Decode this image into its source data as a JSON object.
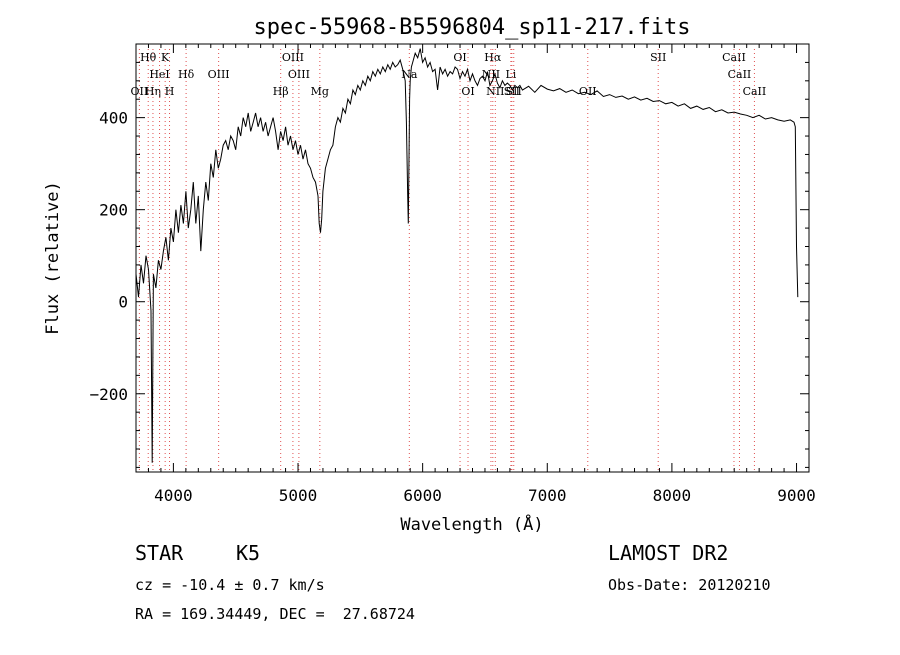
{
  "chart_data": {
    "type": "line",
    "title": "spec-55968-B5596804_sp11-217.fits",
    "xlabel": "Wavelength (Å)",
    "ylabel": "Flux (relative)",
    "xlim": [
      3700,
      9100
    ],
    "ylim": [
      -370,
      560
    ],
    "xticks": [
      4000,
      5000,
      6000,
      7000,
      8000,
      9000
    ],
    "yticks": [
      -200,
      0,
      200,
      400
    ],
    "grid": false,
    "series": [
      {
        "x": [
          3700,
          3720,
          3740,
          3760,
          3780,
          3800,
          3820,
          3830,
          3840,
          3860,
          3880,
          3900,
          3920,
          3940,
          3960,
          3980,
          4000,
          4020,
          4040,
          4060,
          4080,
          4100,
          4120,
          4140,
          4160,
          4180,
          4200,
          4220,
          4240,
          4260,
          4280,
          4300,
          4320,
          4340,
          4360,
          4380,
          4400,
          4420,
          4440,
          4460,
          4480,
          4500,
          4520,
          4540,
          4560,
          4580,
          4600,
          4620,
          4640,
          4660,
          4680,
          4700,
          4720,
          4740,
          4760,
          4780,
          4800,
          4820,
          4840,
          4860,
          4880,
          4900,
          4920,
          4940,
          4960,
          4980,
          5000,
          5020,
          5040,
          5060,
          5080,
          5100,
          5120,
          5140,
          5160,
          5170,
          5180,
          5190,
          5200,
          5220,
          5240,
          5260,
          5280,
          5300,
          5320,
          5340,
          5360,
          5380,
          5400,
          5420,
          5440,
          5460,
          5480,
          5500,
          5520,
          5540,
          5560,
          5580,
          5600,
          5620,
          5640,
          5660,
          5680,
          5700,
          5720,
          5740,
          5760,
          5780,
          5800,
          5820,
          5840,
          5860,
          5870,
          5880,
          5885,
          5890,
          5895,
          5900,
          5910,
          5920,
          5940,
          5960,
          5980,
          6000,
          6020,
          6040,
          6060,
          6080,
          6100,
          6120,
          6140,
          6160,
          6180,
          6200,
          6220,
          6240,
          6260,
          6280,
          6300,
          6320,
          6340,
          6360,
          6380,
          6400,
          6420,
          6440,
          6460,
          6480,
          6500,
          6520,
          6540,
          6560,
          6580,
          6600,
          6620,
          6640,
          6660,
          6680,
          6700,
          6720,
          6740,
          6760,
          6780,
          6800,
          6850,
          6900,
          6950,
          7000,
          7050,
          7100,
          7150,
          7200,
          7250,
          7300,
          7350,
          7400,
          7450,
          7500,
          7550,
          7600,
          7650,
          7700,
          7750,
          7800,
          7850,
          7900,
          7950,
          8000,
          8050,
          8100,
          8150,
          8200,
          8250,
          8300,
          8350,
          8400,
          8450,
          8500,
          8550,
          8600,
          8650,
          8700,
          8750,
          8800,
          8850,
          8900,
          8950,
          8980,
          8990,
          9000,
          9010
        ],
        "values": [
          60,
          10,
          80,
          40,
          100,
          70,
          -20,
          -350,
          60,
          30,
          90,
          70,
          110,
          140,
          90,
          160,
          130,
          200,
          150,
          210,
          170,
          240,
          160,
          200,
          260,
          170,
          230,
          110,
          200,
          260,
          220,
          300,
          270,
          330,
          290,
          310,
          340,
          350,
          330,
          360,
          350,
          330,
          380,
          360,
          400,
          380,
          410,
          370,
          390,
          410,
          380,
          400,
          370,
          390,
          360,
          380,
          400,
          370,
          330,
          370,
          350,
          380,
          340,
          360,
          330,
          350,
          320,
          340,
          310,
          330,
          300,
          290,
          270,
          260,
          230,
          170,
          150,
          180,
          240,
          290,
          310,
          330,
          340,
          380,
          400,
          390,
          420,
          410,
          440,
          430,
          460,
          450,
          470,
          460,
          480,
          470,
          490,
          480,
          500,
          490,
          505,
          495,
          510,
          500,
          515,
          505,
          520,
          510,
          515,
          525,
          505,
          480,
          390,
          230,
          170,
          290,
          440,
          480,
          510,
          520,
          540,
          530,
          550,
          520,
          530,
          510,
          520,
          500,
          505,
          460,
          510,
          495,
          505,
          490,
          500,
          495,
          510,
          505,
          485,
          500,
          490,
          505,
          480,
          495,
          480,
          470,
          485,
          490,
          480,
          500,
          470,
          480,
          495,
          475,
          465,
          480,
          470,
          475,
          470,
          460,
          470,
          465,
          470,
          460,
          468,
          455,
          470,
          462,
          458,
          463,
          455,
          460,
          452,
          455,
          450,
          458,
          446,
          450,
          444,
          447,
          440,
          445,
          438,
          442,
          435,
          437,
          430,
          433,
          425,
          430,
          420,
          425,
          418,
          422,
          413,
          417,
          410,
          412,
          408,
          405,
          400,
          405,
          397,
          400,
          395,
          392,
          395,
          390,
          380,
          120,
          10
        ]
      }
    ],
    "line_marks": [
      {
        "label": "OII",
        "x": 3727
      },
      {
        "label": "Hθ",
        "x": 3798
      },
      {
        "label": "Hη",
        "x": 3836
      },
      {
        "label": "K",
        "x": 3934
      },
      {
        "label": "H",
        "x": 3969
      },
      {
        "label": "HeI",
        "x": 3889
      },
      {
        "label": "Hδ",
        "x": 4102
      },
      {
        "label": "OIII",
        "x": 4363
      },
      {
        "label": "Hβ",
        "x": 4861
      },
      {
        "label": "OIII",
        "x": 4959
      },
      {
        "label": "OIII",
        "x": 5007
      },
      {
        "label": "Mg",
        "x": 5175
      },
      {
        "label": "Na",
        "x": 5893
      },
      {
        "label": "OI",
        "x": 6300
      },
      {
        "label": "OI",
        "x": 6364
      },
      {
        "label": "Hα",
        "x": 6563
      },
      {
        "label": "NII",
        "x": 6548
      },
      {
        "label": "NII",
        "x": 6583
      },
      {
        "label": "Li",
        "x": 6708
      },
      {
        "label": "SII",
        "x": 6716
      },
      {
        "label": "SII",
        "x": 6731
      },
      {
        "label": "OII",
        "x": 7325
      },
      {
        "label": "SII",
        "x": 7890
      },
      {
        "label": "CaII",
        "x": 8498
      },
      {
        "label": "CaII",
        "x": 8542
      },
      {
        "label": "CaII",
        "x": 8662
      }
    ]
  },
  "footer": {
    "object_class": "STAR",
    "subclass": "K5",
    "survey": "LAMOST DR2",
    "cz": "cz = -10.4 ± 0.7 km/s",
    "obs_date": "Obs-Date: 20120210",
    "coords": "RA = 169.34449, DEC =  27.68724"
  }
}
